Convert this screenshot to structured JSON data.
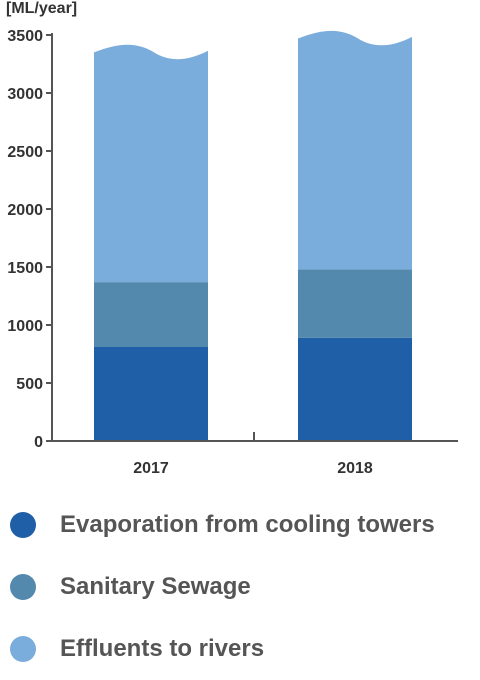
{
  "chart_data": {
    "type": "bar",
    "stacked": true,
    "ylabel": "[ML/year]",
    "categories": [
      "2017",
      "2018"
    ],
    "ylim": [
      0,
      3500
    ],
    "yticks": [
      0,
      500,
      1000,
      1500,
      2000,
      2500,
      3000,
      3500
    ],
    "series": [
      {
        "name": "Evaporation from cooling towers",
        "color": "#1f5fa8",
        "values": [
          810,
          890
        ]
      },
      {
        "name": "Sanitary Sewage",
        "color": "#5289ad",
        "values": [
          560,
          590
        ]
      },
      {
        "name": "Effluents to rivers",
        "color": "#7aacdc",
        "values": [
          1980,
          1990
        ]
      }
    ],
    "top_edge": "wavy",
    "legend_position": "bottom",
    "grid": false
  }
}
